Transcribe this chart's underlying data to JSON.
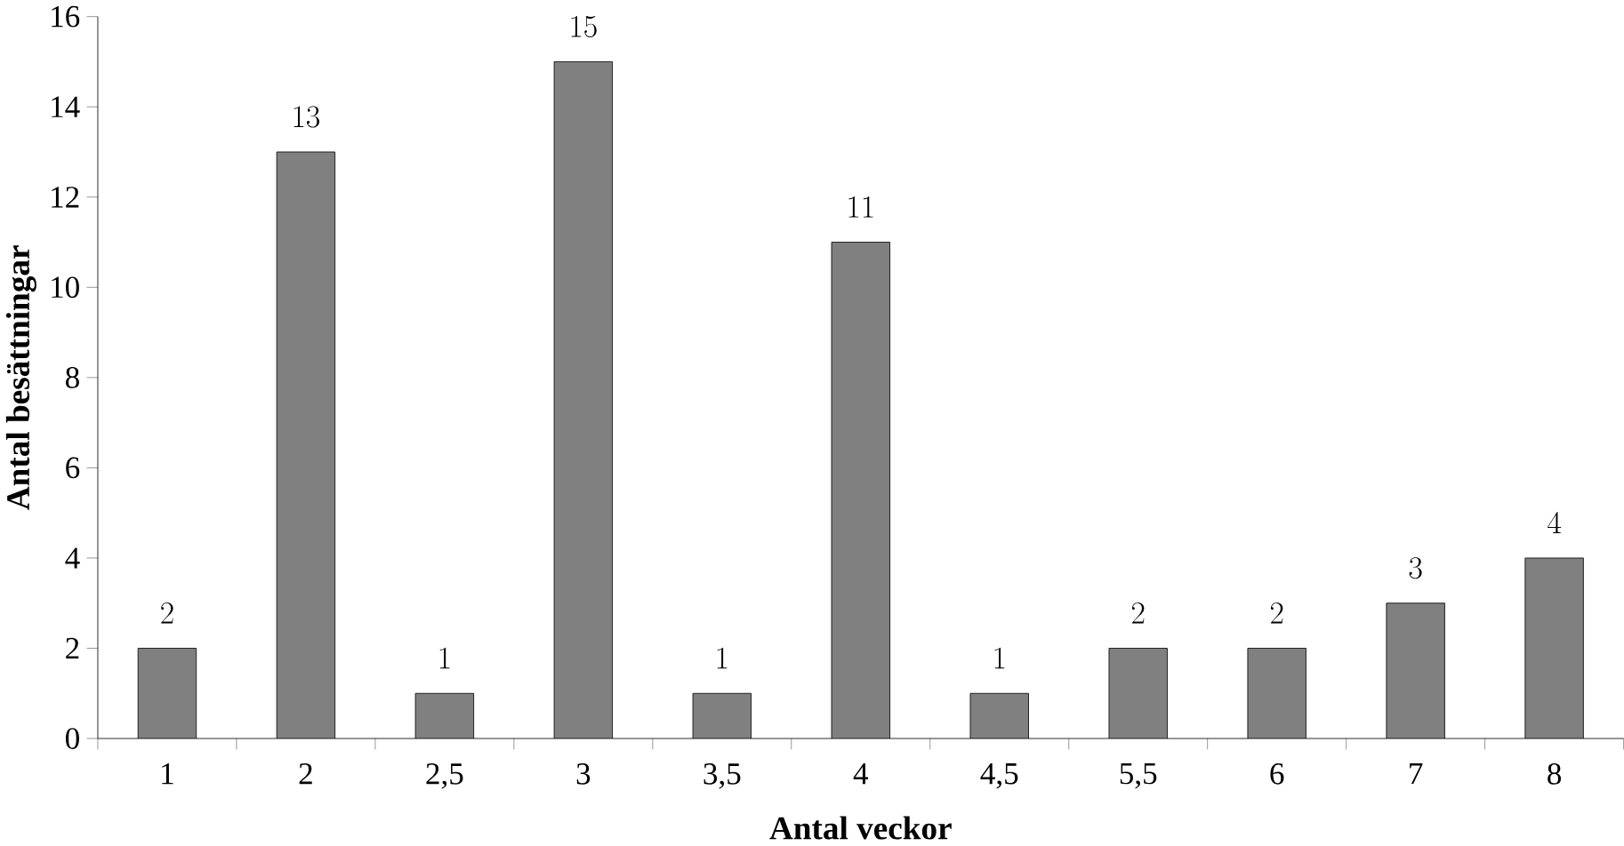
{
  "chart_data": {
    "type": "bar",
    "xlabel": "Antal veckor",
    "ylabel": "Antal besättningar",
    "categories": [
      "1",
      "2",
      "2,5",
      "3",
      "3,5",
      "4",
      "4,5",
      "5,5",
      "6",
      "7",
      "8"
    ],
    "values": [
      2,
      13,
      1,
      15,
      1,
      11,
      1,
      2,
      2,
      3,
      4
    ],
    "color": "#808080",
    "ylim": [
      0,
      16
    ],
    "yticks": [
      0,
      2,
      4,
      6,
      8,
      10,
      12,
      14,
      16
    ],
    "grid": false,
    "data_labels": true
  }
}
